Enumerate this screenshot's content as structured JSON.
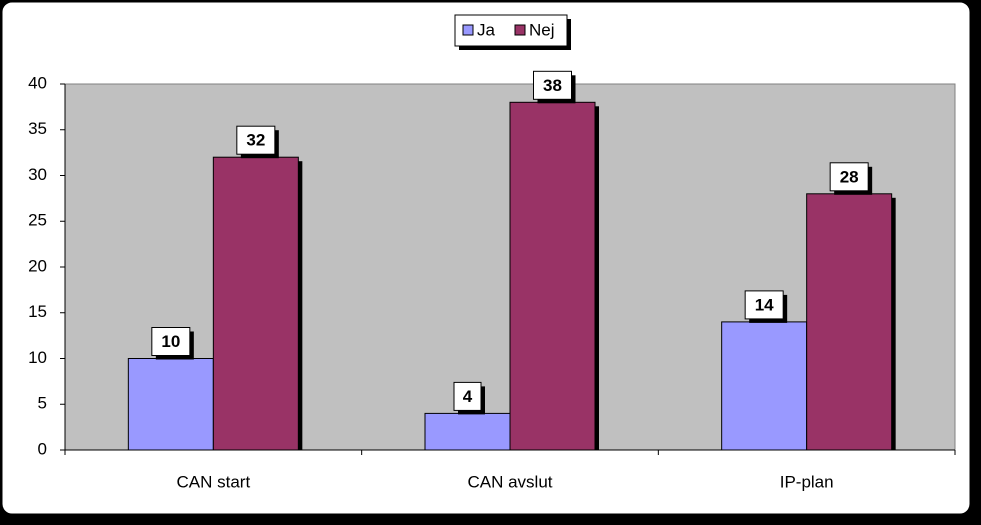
{
  "chart_data": {
    "type": "bar",
    "categories": [
      "CAN start",
      "CAN avslut",
      "IP-plan"
    ],
    "series": [
      {
        "name": "Ja",
        "color": "#9999ff",
        "values": [
          10,
          4,
          14
        ]
      },
      {
        "name": "Nej",
        "color": "#993366",
        "values": [
          32,
          38,
          28
        ]
      }
    ],
    "ylim": [
      0,
      40
    ],
    "yticks": [
      0,
      5,
      10,
      15,
      20,
      25,
      30,
      35,
      40
    ],
    "legend": "top",
    "plot_background": "#c0c0c0"
  }
}
